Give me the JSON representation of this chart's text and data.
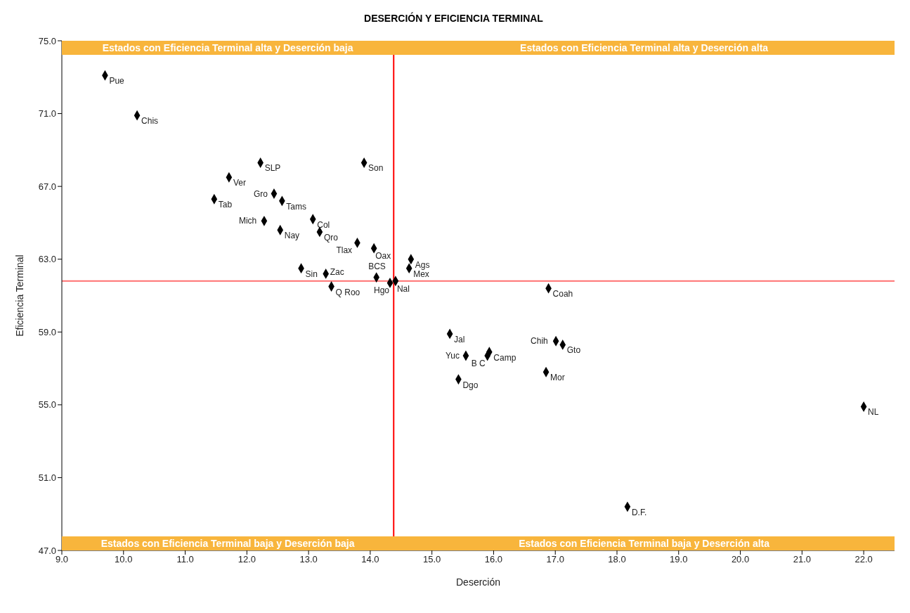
{
  "chart_data": {
    "type": "scatter",
    "title": "DESERCIÓN Y EFICIENCIA TERMINAL",
    "xlabel": "Deserción",
    "ylabel": "Eficiencia Terminal",
    "x": [
      9.7,
      10.22,
      12.22,
      13.9,
      11.71,
      11.47,
      12.44,
      12.57,
      12.28,
      13.07,
      12.54,
      13.18,
      13.79,
      14.06,
      12.88,
      13.28,
      14.1,
      14.32,
      14.41,
      13.37,
      14.66,
      14.63,
      16.89,
      15.29,
      17.01,
      17.12,
      15.93,
      15.9,
      15.55,
      16.85,
      15.43,
      22.0,
      18.17
    ],
    "values": [
      73.1,
      70.9,
      68.3,
      68.3,
      67.5,
      66.3,
      66.6,
      66.2,
      65.1,
      65.2,
      64.6,
      64.5,
      63.9,
      63.6,
      62.5,
      62.2,
      62.0,
      61.7,
      61.8,
      61.5,
      63.0,
      62.5,
      61.4,
      58.9,
      58.5,
      58.3,
      57.9,
      57.7,
      57.7,
      56.8,
      56.4,
      54.9,
      49.4
    ],
    "color": "#000000",
    "marker": "diamond",
    "grid": false,
    "xlim": [
      9,
      22.5
    ],
    "xticks": [
      {
        "value": 9,
        "label": "9.0"
      },
      {
        "value": 10,
        "label": "10.0"
      },
      {
        "value": 11,
        "label": "11.0"
      },
      {
        "value": 12,
        "label": "12.0"
      },
      {
        "value": 13,
        "label": "13.0"
      },
      {
        "value": 14,
        "label": "14.0"
      },
      {
        "value": 15,
        "label": "15.0"
      },
      {
        "value": 16,
        "label": "16.0"
      },
      {
        "value": 17,
        "label": "17.0"
      },
      {
        "value": 18,
        "label": "18.0"
      },
      {
        "value": 19,
        "label": "19.0"
      },
      {
        "value": 20,
        "label": "20.0"
      },
      {
        "value": 21,
        "label": "21.0"
      },
      {
        "value": 22,
        "label": "22.0"
      }
    ],
    "ylim": [
      47,
      75
    ],
    "yticks": [
      {
        "value": 47,
        "label": "47.0"
      },
      {
        "value": 51,
        "label": "51.0"
      },
      {
        "value": 55,
        "label": "55.0"
      },
      {
        "value": 59,
        "label": "59.0"
      },
      {
        "value": 63,
        "label": "63.0"
      },
      {
        "value": 67,
        "label": "67.0"
      },
      {
        "value": 71,
        "label": "71.0"
      },
      {
        "value": 75,
        "label": "75.0"
      }
    ],
    "ref_lines": [
      {
        "axis": "x",
        "value": 14.38,
        "color": "#ff0000"
      },
      {
        "axis": "y",
        "value": 61.8,
        "color": "#ff7070"
      }
    ],
    "annotations": [
      "Estados con Eficiencia Terminal alta y Deserción baja",
      "Estados con Eficiencia Terminal alta y Deserción alta",
      "Estados con Eficiencia Terminal baja y Deserción baja",
      "Estados con Eficiencia Terminal baja y Deserción alta",
      {
        "text": "Pue",
        "x": 9.7,
        "y": 73.1
      },
      {
        "text": "Chis",
        "x": 10.22,
        "y": 70.9
      },
      {
        "text": "SLP",
        "x": 12.22,
        "y": 68.3
      },
      {
        "text": "Son",
        "x": 13.9,
        "y": 68.3
      },
      {
        "text": "Ver",
        "x": 11.71,
        "y": 67.5
      },
      {
        "text": "Tab",
        "x": 11.47,
        "y": 66.3
      },
      {
        "text": "Gro",
        "x": 12.44,
        "y": 66.6
      },
      {
        "text": "Tams",
        "x": 12.57,
        "y": 66.2
      },
      {
        "text": "Mich",
        "x": 12.28,
        "y": 65.1
      },
      {
        "text": "Col",
        "x": 13.07,
        "y": 65.2
      },
      {
        "text": "Nay",
        "x": 12.54,
        "y": 64.6
      },
      {
        "text": "Qro",
        "x": 13.18,
        "y": 64.5
      },
      {
        "text": "Tlax",
        "x": 13.79,
        "y": 63.9
      },
      {
        "text": "Oax",
        "x": 14.06,
        "y": 63.6
      },
      {
        "text": "Sin",
        "x": 12.88,
        "y": 62.5
      },
      {
        "text": "Zac",
        "x": 13.28,
        "y": 62.2
      },
      {
        "text": "BCS",
        "x": 14.1,
        "y": 62.0
      },
      {
        "text": "Hgo",
        "x": 14.32,
        "y": 61.7
      },
      {
        "text": "Nal",
        "x": 14.41,
        "y": 61.8
      },
      {
        "text": "Q Roo",
        "x": 13.37,
        "y": 61.5
      },
      {
        "text": "Ags",
        "x": 14.66,
        "y": 63.0
      },
      {
        "text": "Mex",
        "x": 14.63,
        "y": 62.5
      },
      {
        "text": "Coah",
        "x": 16.89,
        "y": 61.4
      },
      {
        "text": "Jal",
        "x": 15.29,
        "y": 58.9
      },
      {
        "text": "Chih",
        "x": 17.01,
        "y": 58.5
      },
      {
        "text": "Gto",
        "x": 17.12,
        "y": 58.3
      },
      {
        "text": "Camp",
        "x": 15.93,
        "y": 57.9
      },
      {
        "text": "B C",
        "x": 15.9,
        "y": 57.7
      },
      {
        "text": "Yuc",
        "x": 15.55,
        "y": 57.7
      },
      {
        "text": "Mor",
        "x": 16.85,
        "y": 56.8
      },
      {
        "text": "Dgo",
        "x": 15.43,
        "y": 56.4
      },
      {
        "text": "NL",
        "x": 22.0,
        "y": 54.9
      },
      {
        "text": "D.F.",
        "x": 18.17,
        "y": 49.4
      }
    ]
  }
}
